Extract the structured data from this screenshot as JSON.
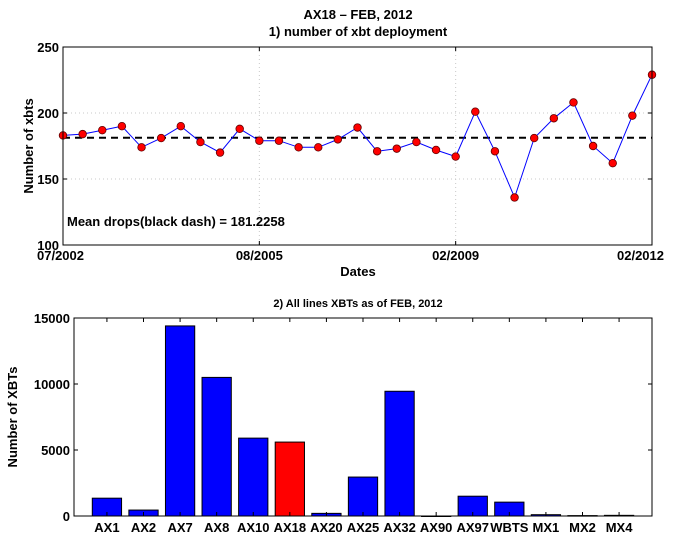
{
  "figure_title": "AX18 – FEB, 2012",
  "chart_data": [
    {
      "type": "line",
      "title": "1) number of xbt deployment",
      "xlabel": "Dates",
      "ylabel": "Number of xbts",
      "ylim": [
        100,
        250
      ],
      "yticks": [
        "100",
        "150",
        "200",
        "250"
      ],
      "xticks": [
        "07/2002",
        "08/2005",
        "02/2009",
        "02/2012"
      ],
      "grid": true,
      "annotation": "Mean drops(black dash) = 181.2258",
      "mean": 181.2258,
      "series": [
        {
          "values": [
            183,
            184,
            187,
            190,
            174,
            181,
            190,
            178,
            170,
            188,
            179,
            179,
            174,
            174,
            180,
            189,
            171,
            173,
            178,
            172,
            167,
            201,
            171,
            136,
            181,
            196,
            208,
            175,
            162,
            198,
            229
          ],
          "color": "#0000ff",
          "marker_color": "#ff0000"
        }
      ]
    },
    {
      "type": "bar",
      "title": "2) All lines XBTs as of FEB, 2012",
      "xlabel": "",
      "ylabel": "Number of XBTs",
      "ylim": [
        0,
        15000
      ],
      "yticks": [
        "0",
        "5000",
        "10000",
        "15000"
      ],
      "categories": [
        "AX1",
        "AX2",
        "AX7",
        "AX8",
        "AX10",
        "AX18",
        "AX20",
        "AX25",
        "AX32",
        "AX90",
        "AX97",
        "WBTS",
        "MX1",
        "MX2",
        "MX4"
      ],
      "values": [
        1350,
        450,
        14400,
        10500,
        5900,
        5600,
        200,
        2950,
        9450,
        0,
        1500,
        1050,
        100,
        30,
        50
      ],
      "highlight": "AX18",
      "bar_color": "#0000ff",
      "highlight_color": "#ff0000"
    }
  ]
}
